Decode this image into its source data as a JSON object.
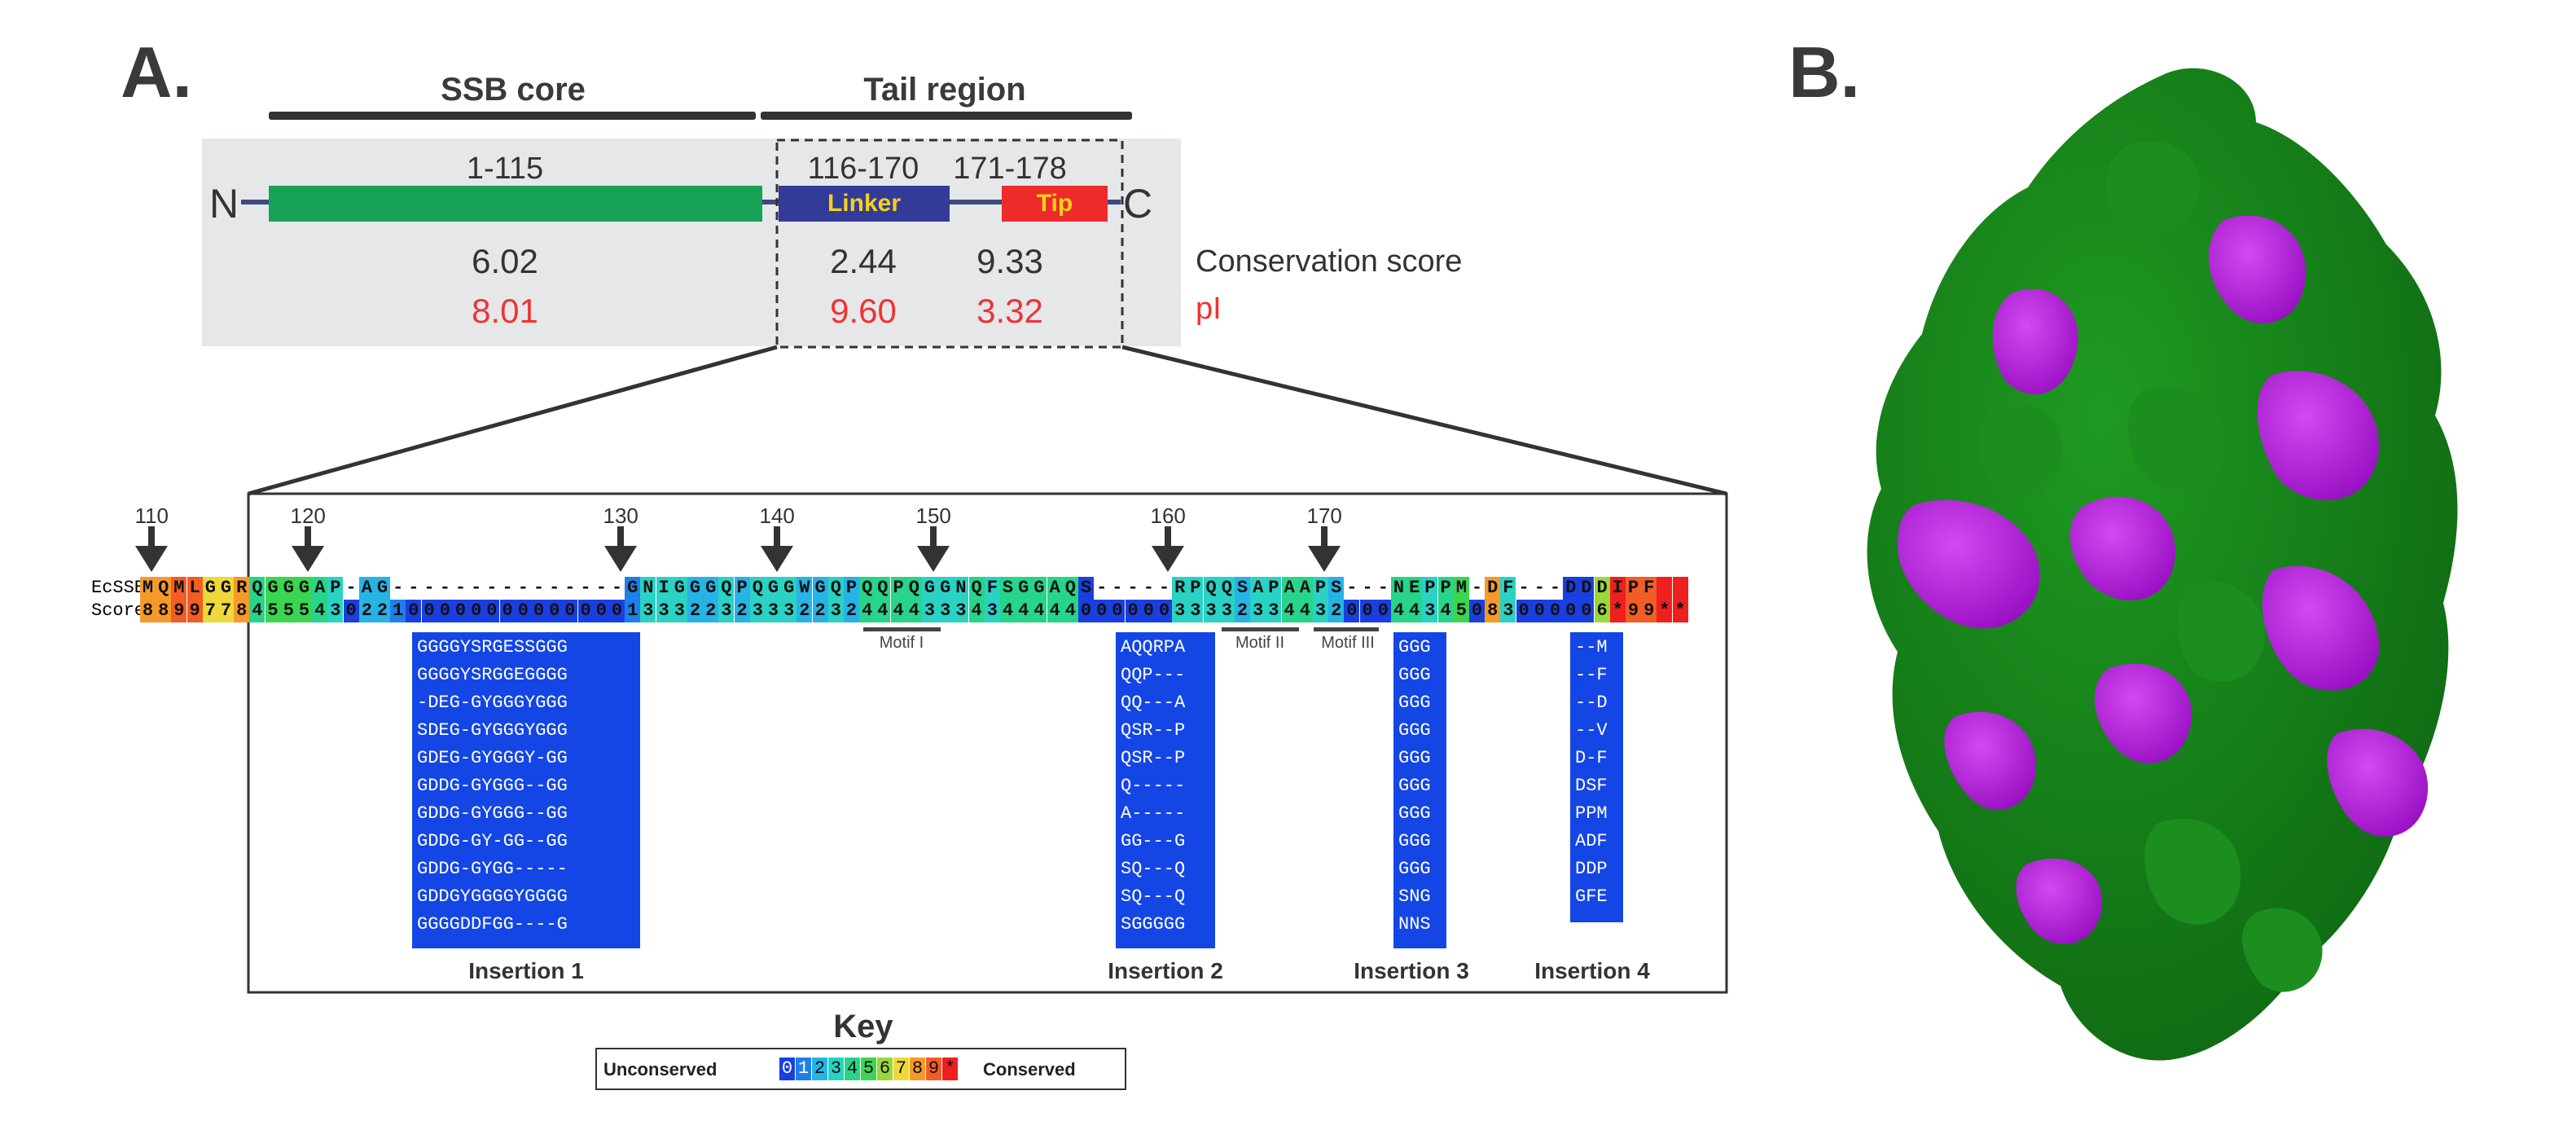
{
  "panel_a": {
    "letter": "A.",
    "ssb_core_label": "SSB core",
    "tail_region_label": "Tail region",
    "n_label": "N",
    "c_label": "C",
    "core_range": "1-115",
    "linker_range": "116-170",
    "tip_range": "171-178",
    "linker_label": "Linker",
    "tip_label": "Tip",
    "conservation": {
      "core": "6.02",
      "linker": "2.44",
      "tip": "9.33",
      "label": "Conservation score"
    },
    "pi": {
      "core": "8.01",
      "linker": "9.60",
      "tip": "3.32",
      "label": "pI"
    },
    "colors": {
      "core": "#17a257",
      "linker": "#333b99",
      "tip": "#ee2b2b",
      "tip_text": "#f5d11a",
      "red_text": "#ee3333"
    }
  },
  "alignment": {
    "position_markers": [
      "110",
      "120",
      "130",
      "140",
      "150",
      "160",
      "170"
    ],
    "row_labels": {
      "seq": "EcSSB",
      "score": "Score"
    },
    "ecssb_sequence": "MQMLGGRQGGGAP-AG---------------GNIGGGQPQGGWGQPQQPQGGNQFSGGAQS-----RPQQSAPAAPS---NEPPM-DF---DDDIPF",
    "score_sequence": "8899778455543022100000000000000133322323332232444433343444440000003333233443200044345083000006*99**",
    "motifs": [
      "Motif I",
      "Motif II",
      "Motif III"
    ],
    "insertions": [
      {
        "label": "Insertion 1",
        "lines": [
          "GGGGYSRGESSGGG",
          "GGGGYSRGGEGGGG",
          "-DEG-GYGGGYGGG",
          "SDEG-GYGGGYGGG",
          "GDEG-GYGGGY-GG",
          "GDDG-GYGGG--GG",
          "GDDG-GYGGG--GG",
          "GDDG-GY-GG--GG",
          "GDDG-GYGG-----",
          "GDDGYGGGGYGGGG",
          "GGGGDDFGG----G"
        ]
      },
      {
        "label": "Insertion 2",
        "lines": [
          "AQQRPA",
          "QQP---",
          "QQ---A",
          "QSR--P",
          "QSR--P",
          "Q-----",
          "A-----",
          "GG---G",
          "SQ---Q",
          "SQ---Q",
          "SGGGGG"
        ]
      },
      {
        "label": "Insertion 3",
        "lines": [
          "GGG",
          "GGG",
          "GGG",
          "GGG",
          "GGG",
          "GGG",
          "GGG",
          "GGG",
          "GGG",
          "SNG",
          "NNS"
        ]
      },
      {
        "label": "Insertion 4",
        "lines": [
          "--M",
          "--F",
          "--D",
          "--V",
          "D-F",
          "DSF",
          "PPM",
          "ADF",
          "DDP",
          "GFE"
        ]
      }
    ]
  },
  "key": {
    "title": "Key",
    "left_label": "Unconserved",
    "right_label": "Conserved",
    "digits": [
      "0",
      "1",
      "2",
      "3",
      "4",
      "5",
      "6",
      "7",
      "8",
      "9",
      "*"
    ],
    "colors": [
      "#1a3fe0",
      "#1f7fe8",
      "#27b3e6",
      "#2ad2c4",
      "#27d48a",
      "#3bd651",
      "#9ad83a",
      "#eed83a",
      "#f59a2a",
      "#f25d25",
      "#ee1f1f"
    ]
  },
  "panel_b": {
    "letter": "B.",
    "colors": {
      "green": "#157a18",
      "green_light": "#1f9a22",
      "purple": "#b418e0"
    }
  }
}
